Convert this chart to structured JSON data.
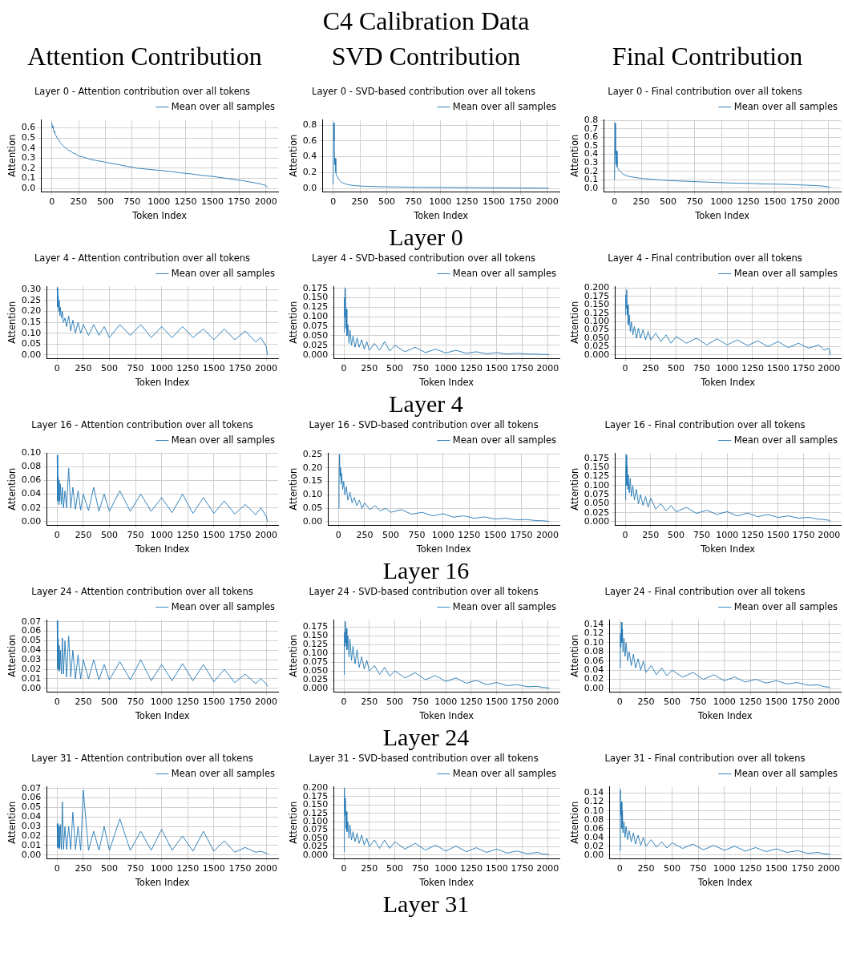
{
  "chart_data": [
    {
      "type": "other",
      "title": "C4 Calibration Data"
    },
    {
      "type": "line",
      "title": "Layer 0 - Attention contribution over all tokens",
      "subtitle": "Attention Contribution",
      "xlabel": "Token Index",
      "ylabel": "Attention",
      "legend": "top right",
      "grid": true,
      "xlim": [
        -100,
        2115
      ],
      "xticks": [
        0,
        250,
        500,
        750,
        1000,
        1250,
        1500,
        1750,
        2000
      ],
      "ylim": [
        -0.03,
        0.68
      ],
      "yticks": [
        {
          "value": 0,
          "label": "0.0"
        },
        0.1,
        0.2,
        0.3,
        0.4,
        0.5,
        0.6
      ],
      "x": [
        0,
        5,
        10,
        15,
        20,
        25,
        30,
        40,
        50,
        60,
        75,
        90,
        110,
        130,
        150,
        175,
        200,
        225,
        250,
        300,
        350,
        400,
        450,
        500,
        600,
        700,
        800,
        900,
        1000,
        1100,
        1200,
        1300,
        1400,
        1500,
        1600,
        1700,
        1800,
        1900,
        1950,
        2000,
        2015
      ],
      "series": [
        {
          "name": "Mean over all samples",
          "color": "#1f77b4",
          "values": [
            0.65,
            0.6,
            0.62,
            0.58,
            0.57,
            0.55,
            0.54,
            0.52,
            0.5,
            0.49,
            0.46,
            0.44,
            0.42,
            0.4,
            0.38,
            0.37,
            0.35,
            0.34,
            0.32,
            0.31,
            0.29,
            0.28,
            0.27,
            0.26,
            0.24,
            0.22,
            0.2,
            0.19,
            0.18,
            0.17,
            0.155,
            0.145,
            0.13,
            0.12,
            0.105,
            0.09,
            0.075,
            0.055,
            0.045,
            0.03,
            0.01
          ]
        }
      ]
    },
    {
      "type": "line",
      "title": "Layer 0 - SVD-based contribution over all tokens",
      "subtitle": "SVD Contribution",
      "annotations": [
        "Layer 0"
      ],
      "xlabel": "Token Index",
      "ylabel": "Attention",
      "legend": "top right",
      "grid": true,
      "xlim": [
        -100,
        2115
      ],
      "xticks": [
        0,
        250,
        500,
        750,
        1000,
        1250,
        1500,
        1750,
        2000
      ],
      "ylim": [
        -0.04,
        0.87
      ],
      "yticks": [
        {
          "value": 0,
          "label": "0.0"
        },
        0.2,
        0.4,
        0.6,
        0.8
      ],
      "x": [
        0,
        5,
        10,
        15,
        20,
        25,
        30,
        40,
        50,
        60,
        75,
        90,
        110,
        130,
        150,
        175,
        200,
        225,
        250,
        300,
        350,
        400,
        450,
        500,
        600,
        700,
        800,
        900,
        1000,
        1100,
        1200,
        1300,
        1400,
        1500,
        1600,
        1700,
        1800,
        1900,
        1950,
        2000,
        2015
      ],
      "series": [
        {
          "name": "Mean over all samples",
          "color": "#1f77b4",
          "values": [
            0.05,
            0.83,
            0.6,
            0.3,
            0.38,
            0.2,
            0.17,
            0.15,
            0.12,
            0.1,
            0.08,
            0.07,
            0.06,
            0.05,
            0.045,
            0.04,
            0.035,
            0.033,
            0.03,
            0.027,
            0.025,
            0.023,
            0.021,
            0.02,
            0.018,
            0.016,
            0.015,
            0.014,
            0.013,
            0.012,
            0.011,
            0.01,
            0.009,
            0.008,
            0.007,
            0.006,
            0.005,
            0.004,
            0.003,
            0.002,
            0.002
          ]
        }
      ]
    },
    {
      "type": "line",
      "title": "Layer 0 - Final contribution over all tokens",
      "subtitle": "Final Contribution",
      "xlabel": "Token Index",
      "ylabel": "Attention",
      "legend": "top right",
      "grid": true,
      "xlim": [
        -100,
        2115
      ],
      "xticks": [
        0,
        250,
        500,
        750,
        1000,
        1250,
        1500,
        1750,
        2000
      ],
      "ylim": [
        -0.04,
        0.81
      ],
      "yticks": [
        {
          "value": 0,
          "label": "0.0"
        },
        0.1,
        0.2,
        0.3,
        0.4,
        0.5,
        0.6,
        0.7,
        0.8
      ],
      "x": [
        0,
        5,
        10,
        15,
        20,
        25,
        30,
        40,
        50,
        60,
        75,
        90,
        110,
        130,
        150,
        175,
        200,
        225,
        250,
        300,
        350,
        400,
        450,
        500,
        600,
        700,
        800,
        900,
        1000,
        1100,
        1200,
        1300,
        1400,
        1500,
        1600,
        1700,
        1800,
        1900,
        1950,
        2000,
        2015
      ],
      "series": [
        {
          "name": "Mean over all samples",
          "color": "#1f77b4",
          "values": [
            0.1,
            0.77,
            0.4,
            0.28,
            0.44,
            0.25,
            0.24,
            0.22,
            0.2,
            0.19,
            0.17,
            0.16,
            0.15,
            0.14,
            0.135,
            0.13,
            0.125,
            0.12,
            0.115,
            0.11,
            0.105,
            0.1,
            0.095,
            0.09,
            0.085,
            0.08,
            0.075,
            0.07,
            0.065,
            0.06,
            0.058,
            0.055,
            0.05,
            0.048,
            0.045,
            0.04,
            0.035,
            0.03,
            0.025,
            0.015,
            0.005
          ]
        }
      ]
    },
    {
      "type": "line",
      "title": "Layer 4 - Attention contribution over all tokens",
      "xlabel": "Token Index",
      "ylabel": "Attention",
      "legend": "top right",
      "grid": true,
      "xlim": [
        -100,
        2115
      ],
      "xticks": [
        0,
        250,
        500,
        750,
        1000,
        1250,
        1500,
        1750,
        2000
      ],
      "ylim": [
        -0.015,
        0.315
      ],
      "yticks": [
        {
          "value": 0,
          "label": "0.00"
        },
        0.05,
        {
          "value": 0.1,
          "label": "0.10"
        },
        0.15,
        {
          "value": 0.2,
          "label": "0.20"
        },
        0.25,
        {
          "value": 0.3,
          "label": "0.30"
        }
      ],
      "x": [
        0,
        5,
        10,
        15,
        20,
        25,
        30,
        40,
        50,
        60,
        75,
        90,
        110,
        130,
        150,
        175,
        200,
        225,
        250,
        300,
        350,
        400,
        450,
        500,
        600,
        700,
        800,
        900,
        1000,
        1100,
        1200,
        1300,
        1400,
        1500,
        1600,
        1700,
        1800,
        1900,
        1950,
        2000,
        2015
      ],
      "series": [
        {
          "name": "Mean over all samples",
          "color": "#1f77b4",
          "values": [
            0.31,
            0.22,
            0.27,
            0.2,
            0.25,
            0.18,
            0.22,
            0.17,
            0.2,
            0.15,
            0.17,
            0.13,
            0.18,
            0.11,
            0.16,
            0.1,
            0.15,
            0.1,
            0.14,
            0.09,
            0.14,
            0.09,
            0.13,
            0.08,
            0.14,
            0.09,
            0.14,
            0.08,
            0.13,
            0.08,
            0.13,
            0.08,
            0.12,
            0.07,
            0.12,
            0.07,
            0.11,
            0.06,
            0.08,
            0.04,
            0.0
          ]
        }
      ]
    },
    {
      "type": "line",
      "title": "Layer 4 - SVD-based contribution over all tokens",
      "annotations": [
        "Layer 4"
      ],
      "xlabel": "Token Index",
      "ylabel": "Attention",
      "legend": "top right",
      "grid": true,
      "xlim": [
        -100,
        2115
      ],
      "xticks": [
        0,
        250,
        500,
        750,
        1000,
        1250,
        1500,
        1750,
        2000
      ],
      "ylim": [
        -0.009,
        0.18
      ],
      "yticks": [
        {
          "value": 0,
          "label": "0.000"
        },
        0.025,
        {
          "value": 0.05,
          "label": "0.050"
        },
        0.075,
        {
          "value": 0.1,
          "label": "0.100"
        },
        0.125,
        {
          "value": 0.15,
          "label": "0.150"
        },
        0.175
      ],
      "x": [
        0,
        5,
        10,
        15,
        20,
        25,
        30,
        40,
        50,
        60,
        75,
        90,
        110,
        130,
        150,
        175,
        200,
        225,
        250,
        300,
        350,
        400,
        450,
        500,
        600,
        700,
        800,
        900,
        1000,
        1100,
        1200,
        1300,
        1400,
        1500,
        1600,
        1700,
        1800,
        1900,
        1950,
        2000,
        2015
      ],
      "series": [
        {
          "name": "Mean over all samples",
          "color": "#1f77b4",
          "values": [
            0.06,
            0.15,
            0.1,
            0.175,
            0.07,
            0.12,
            0.05,
            0.08,
            0.03,
            0.065,
            0.025,
            0.05,
            0.02,
            0.045,
            0.02,
            0.04,
            0.015,
            0.035,
            0.012,
            0.03,
            0.012,
            0.035,
            0.01,
            0.025,
            0.008,
            0.02,
            0.006,
            0.015,
            0.005,
            0.012,
            0.004,
            0.008,
            0.003,
            0.006,
            0.002,
            0.004,
            0.002,
            0.002,
            0.001,
            0.001,
            0.0
          ]
        }
      ]
    },
    {
      "type": "line",
      "title": "Layer 4 - Final contribution over all tokens",
      "xlabel": "Token Index",
      "ylabel": "Attention",
      "legend": "top right",
      "grid": true,
      "xlim": [
        -100,
        2115
      ],
      "xticks": [
        0,
        250,
        500,
        750,
        1000,
        1250,
        1500,
        1750,
        2000
      ],
      "ylim": [
        -0.01,
        0.205
      ],
      "yticks": [
        {
          "value": 0,
          "label": "0.000"
        },
        0.025,
        {
          "value": 0.05,
          "label": "0.050"
        },
        0.075,
        {
          "value": 0.1,
          "label": "0.100"
        },
        0.125,
        {
          "value": 0.15,
          "label": "0.150"
        },
        0.175,
        {
          "value": 0.2,
          "label": "0.200"
        }
      ],
      "x": [
        0,
        5,
        10,
        15,
        20,
        25,
        30,
        40,
        50,
        60,
        75,
        90,
        110,
        130,
        150,
        175,
        200,
        225,
        250,
        300,
        350,
        400,
        450,
        500,
        600,
        700,
        800,
        900,
        1000,
        1100,
        1200,
        1300,
        1400,
        1500,
        1600,
        1700,
        1800,
        1900,
        1950,
        2000,
        2015
      ],
      "series": [
        {
          "name": "Mean over all samples",
          "color": "#1f77b4",
          "values": [
            0.12,
            0.18,
            0.14,
            0.195,
            0.12,
            0.15,
            0.09,
            0.12,
            0.07,
            0.1,
            0.06,
            0.085,
            0.05,
            0.08,
            0.05,
            0.075,
            0.045,
            0.07,
            0.045,
            0.065,
            0.04,
            0.06,
            0.035,
            0.055,
            0.035,
            0.05,
            0.03,
            0.048,
            0.03,
            0.045,
            0.028,
            0.042,
            0.025,
            0.04,
            0.022,
            0.035,
            0.02,
            0.03,
            0.015,
            0.02,
            0.0
          ]
        }
      ]
    },
    {
      "type": "line",
      "title": "Layer 16 - Attention contribution over all tokens",
      "xlabel": "Token Index",
      "ylabel": "Attention",
      "legend": "top right",
      "grid": true,
      "xlim": [
        -100,
        2115
      ],
      "xticks": [
        0,
        250,
        500,
        750,
        1000,
        1250,
        1500,
        1750,
        2000
      ],
      "ylim": [
        -0.005,
        0.1
      ],
      "yticks": [
        {
          "value": 0,
          "label": "0.00"
        },
        0.02,
        0.04,
        0.06,
        0.08,
        {
          "value": 0.1,
          "label": "0.10"
        }
      ],
      "x": [
        0,
        5,
        10,
        15,
        20,
        25,
        30,
        40,
        50,
        60,
        75,
        90,
        110,
        130,
        150,
        175,
        200,
        225,
        250,
        300,
        350,
        400,
        450,
        500,
        600,
        700,
        800,
        900,
        1000,
        1100,
        1200,
        1300,
        1400,
        1500,
        1600,
        1700,
        1800,
        1900,
        1950,
        2000,
        2015
      ],
      "series": [
        {
          "name": "Mean over all samples",
          "color": "#1f77b4",
          "values": [
            0.097,
            0.03,
            0.065,
            0.025,
            0.06,
            0.03,
            0.055,
            0.025,
            0.05,
            0.02,
            0.045,
            0.02,
            0.078,
            0.02,
            0.05,
            0.018,
            0.045,
            0.017,
            0.04,
            0.016,
            0.05,
            0.015,
            0.04,
            0.015,
            0.045,
            0.015,
            0.04,
            0.015,
            0.035,
            0.013,
            0.04,
            0.012,
            0.035,
            0.012,
            0.03,
            0.011,
            0.025,
            0.01,
            0.02,
            0.008,
            0.0
          ]
        }
      ]
    },
    {
      "type": "line",
      "title": "Layer 16 - SVD-based contribution over all tokens",
      "annotations": [
        "Layer 16"
      ],
      "xlabel": "Token Index",
      "ylabel": "Attention",
      "legend": "top right",
      "grid": true,
      "xlim": [
        -100,
        2115
      ],
      "xticks": [
        0,
        250,
        500,
        750,
        1000,
        1250,
        1500,
        1750,
        2000
      ],
      "ylim": [
        -0.012,
        0.255
      ],
      "yticks": [
        {
          "value": 0,
          "label": "0.00"
        },
        0.05,
        {
          "value": 0.1,
          "label": "0.10"
        },
        0.15,
        {
          "value": 0.2,
          "label": "0.20"
        },
        0.25
      ],
      "x": [
        0,
        5,
        10,
        15,
        20,
        25,
        30,
        40,
        50,
        60,
        75,
        90,
        110,
        130,
        150,
        175,
        200,
        225,
        250,
        300,
        350,
        400,
        450,
        500,
        600,
        700,
        800,
        900,
        1000,
        1100,
        1200,
        1300,
        1400,
        1500,
        1600,
        1700,
        1800,
        1900,
        1950,
        2000,
        2015
      ],
      "series": [
        {
          "name": "Mean over all samples",
          "color": "#1f77b4",
          "values": [
            0.05,
            0.15,
            0.25,
            0.17,
            0.2,
            0.14,
            0.18,
            0.12,
            0.15,
            0.1,
            0.13,
            0.08,
            0.11,
            0.07,
            0.09,
            0.06,
            0.08,
            0.05,
            0.07,
            0.045,
            0.06,
            0.04,
            0.05,
            0.035,
            0.045,
            0.028,
            0.035,
            0.022,
            0.03,
            0.017,
            0.022,
            0.013,
            0.018,
            0.01,
            0.013,
            0.007,
            0.008,
            0.004,
            0.004,
            0.002,
            0.001
          ]
        }
      ]
    },
    {
      "type": "line",
      "title": "Layer 16 - Final contribution over all tokens",
      "xlabel": "Token Index",
      "ylabel": "Attention",
      "legend": "top right",
      "grid": true,
      "xlim": [
        -100,
        2115
      ],
      "xticks": [
        0,
        250,
        500,
        750,
        1000,
        1250,
        1500,
        1750,
        2000
      ],
      "ylim": [
        -0.009,
        0.19
      ],
      "yticks": [
        {
          "value": 0,
          "label": "0.000"
        },
        0.025,
        {
          "value": 0.05,
          "label": "0.050"
        },
        0.075,
        {
          "value": 0.1,
          "label": "0.100"
        },
        0.125,
        {
          "value": 0.15,
          "label": "0.150"
        },
        0.175
      ],
      "x": [
        0,
        5,
        10,
        15,
        20,
        25,
        30,
        40,
        50,
        60,
        75,
        90,
        110,
        130,
        150,
        175,
        200,
        225,
        250,
        300,
        350,
        400,
        450,
        500,
        600,
        700,
        800,
        900,
        1000,
        1100,
        1200,
        1300,
        1400,
        1500,
        1600,
        1700,
        1800,
        1900,
        1950,
        2000,
        2015
      ],
      "series": [
        {
          "name": "Mean over all samples",
          "color": "#1f77b4",
          "values": [
            0.06,
            0.14,
            0.185,
            0.1,
            0.155,
            0.09,
            0.13,
            0.08,
            0.12,
            0.07,
            0.1,
            0.06,
            0.09,
            0.05,
            0.075,
            0.045,
            0.07,
            0.04,
            0.065,
            0.035,
            0.05,
            0.03,
            0.045,
            0.027,
            0.04,
            0.023,
            0.032,
            0.02,
            0.028,
            0.016,
            0.024,
            0.014,
            0.02,
            0.012,
            0.016,
            0.01,
            0.012,
            0.007,
            0.006,
            0.004,
            0.002
          ]
        }
      ]
    },
    {
      "type": "line",
      "title": "Layer 24 - Attention contribution over all tokens",
      "xlabel": "Token Index",
      "ylabel": "Attention",
      "legend": "top right",
      "grid": true,
      "xlim": [
        -100,
        2115
      ],
      "xticks": [
        0,
        250,
        500,
        750,
        1000,
        1250,
        1500,
        1750,
        2000
      ],
      "ylim": [
        -0.0035,
        0.072
      ],
      "yticks": [
        {
          "value": 0,
          "label": "0.00"
        },
        0.01,
        0.02,
        0.03,
        0.04,
        0.05,
        0.06,
        0.07
      ],
      "x": [
        0,
        5,
        10,
        15,
        20,
        25,
        30,
        40,
        50,
        60,
        75,
        90,
        110,
        130,
        150,
        175,
        200,
        225,
        250,
        300,
        350,
        400,
        450,
        500,
        600,
        700,
        800,
        900,
        1000,
        1100,
        1200,
        1300,
        1400,
        1500,
        1600,
        1700,
        1800,
        1900,
        1950,
        2000,
        2015
      ],
      "series": [
        {
          "name": "Mean over all samples",
          "color": "#1f77b4",
          "values": [
            0.071,
            0.02,
            0.052,
            0.018,
            0.045,
            0.02,
            0.04,
            0.015,
            0.053,
            0.015,
            0.05,
            0.012,
            0.055,
            0.012,
            0.04,
            0.01,
            0.035,
            0.01,
            0.03,
            0.01,
            0.03,
            0.009,
            0.025,
            0.009,
            0.028,
            0.009,
            0.03,
            0.008,
            0.025,
            0.008,
            0.026,
            0.008,
            0.025,
            0.007,
            0.02,
            0.006,
            0.015,
            0.005,
            0.01,
            0.005,
            0.002
          ]
        }
      ]
    },
    {
      "type": "line",
      "title": "Layer 24 - SVD-based contribution over all tokens",
      "annotations": [
        "Layer 24"
      ],
      "xlabel": "Token Index",
      "ylabel": "Attention",
      "legend": "top right",
      "grid": true,
      "xlim": [
        -100,
        2115
      ],
      "xticks": [
        0,
        250,
        500,
        750,
        1000,
        1250,
        1500,
        1750,
        2000
      ],
      "ylim": [
        -0.009,
        0.195
      ],
      "yticks": [
        {
          "value": 0,
          "label": "0.000"
        },
        0.025,
        {
          "value": 0.05,
          "label": "0.050"
        },
        0.075,
        {
          "value": 0.1,
          "label": "0.100"
        },
        0.125,
        {
          "value": 0.15,
          "label": "0.150"
        },
        0.175
      ],
      "x": [
        0,
        5,
        10,
        15,
        20,
        25,
        30,
        40,
        50,
        60,
        75,
        90,
        110,
        130,
        150,
        175,
        200,
        225,
        250,
        300,
        350,
        400,
        450,
        500,
        600,
        700,
        800,
        900,
        1000,
        1100,
        1200,
        1300,
        1400,
        1500,
        1600,
        1700,
        1800,
        1900,
        1950,
        2000,
        2015
      ],
      "series": [
        {
          "name": "Mean over all samples",
          "color": "#1f77b4",
          "values": [
            0.04,
            0.16,
            0.12,
            0.19,
            0.13,
            0.17,
            0.11,
            0.15,
            0.09,
            0.14,
            0.08,
            0.12,
            0.07,
            0.11,
            0.06,
            0.09,
            0.055,
            0.08,
            0.05,
            0.065,
            0.04,
            0.06,
            0.035,
            0.05,
            0.03,
            0.045,
            0.025,
            0.037,
            0.02,
            0.03,
            0.015,
            0.023,
            0.011,
            0.017,
            0.008,
            0.011,
            0.005,
            0.006,
            0.003,
            0.002,
            0.001
          ]
        }
      ]
    },
    {
      "type": "line",
      "title": "Layer 24 - Final contribution over all tokens",
      "xlabel": "Token Index",
      "ylabel": "Attention",
      "legend": "top right",
      "grid": true,
      "xlim": [
        -100,
        2115
      ],
      "xticks": [
        0,
        250,
        500,
        750,
        1000,
        1250,
        1500,
        1750,
        2000
      ],
      "ylim": [
        -0.007,
        0.15
      ],
      "yticks": [
        {
          "value": 0,
          "label": "0.00"
        },
        0.02,
        0.04,
        0.06,
        0.08,
        {
          "value": 0.1,
          "label": "0.10"
        },
        0.12,
        0.14
      ],
      "x": [
        0,
        5,
        10,
        15,
        20,
        25,
        30,
        40,
        50,
        60,
        75,
        90,
        110,
        130,
        150,
        175,
        200,
        225,
        250,
        300,
        350,
        400,
        450,
        500,
        600,
        700,
        800,
        900,
        1000,
        1100,
        1200,
        1300,
        1400,
        1500,
        1600,
        1700,
        1800,
        1900,
        1950,
        2000,
        2015
      ],
      "series": [
        {
          "name": "Mean over all samples",
          "color": "#1f77b4",
          "values": [
            0.045,
            0.12,
            0.09,
            0.145,
            0.1,
            0.13,
            0.08,
            0.11,
            0.07,
            0.1,
            0.06,
            0.08,
            0.05,
            0.075,
            0.045,
            0.065,
            0.04,
            0.06,
            0.035,
            0.05,
            0.03,
            0.045,
            0.028,
            0.04,
            0.025,
            0.035,
            0.02,
            0.03,
            0.017,
            0.025,
            0.014,
            0.02,
            0.012,
            0.017,
            0.01,
            0.013,
            0.007,
            0.008,
            0.004,
            0.003,
            0.001
          ]
        }
      ]
    },
    {
      "type": "line",
      "title": "Layer 31 - Attention contribution over all tokens",
      "xlabel": "Token Index",
      "ylabel": "Attention",
      "legend": "top right",
      "grid": true,
      "xlim": [
        -100,
        2115
      ],
      "xticks": [
        0,
        250,
        500,
        750,
        1000,
        1250,
        1500,
        1750,
        2000
      ],
      "ylim": [
        -0.0035,
        0.072
      ],
      "yticks": [
        {
          "value": 0,
          "label": "0.00"
        },
        0.01,
        0.02,
        0.03,
        0.04,
        0.05,
        0.06,
        0.07
      ],
      "x": [
        0,
        5,
        10,
        15,
        20,
        25,
        30,
        40,
        50,
        60,
        75,
        90,
        110,
        130,
        150,
        175,
        200,
        225,
        250,
        300,
        350,
        400,
        450,
        500,
        600,
        700,
        800,
        900,
        1000,
        1100,
        1200,
        1300,
        1400,
        1500,
        1600,
        1700,
        1800,
        1900,
        1950,
        2000,
        2015
      ],
      "series": [
        {
          "name": "Mean over all samples",
          "color": "#1f77b4",
          "values": [
            0.033,
            0.008,
            0.033,
            0.007,
            0.03,
            0.007,
            0.032,
            0.006,
            0.056,
            0.006,
            0.03,
            0.006,
            0.03,
            0.006,
            0.045,
            0.006,
            0.03,
            0.005,
            0.068,
            0.005,
            0.025,
            0.005,
            0.03,
            0.005,
            0.038,
            0.005,
            0.025,
            0.005,
            0.027,
            0.005,
            0.02,
            0.004,
            0.025,
            0.004,
            0.015,
            0.003,
            0.008,
            0.003,
            0.004,
            0.002,
            0.001
          ]
        }
      ]
    },
    {
      "type": "line",
      "title": "Layer 31 - SVD-based contribution over all tokens",
      "annotations": [
        "Layer 31"
      ],
      "xlabel": "Token Index",
      "ylabel": "Attention",
      "legend": "top right",
      "grid": true,
      "xlim": [
        -100,
        2115
      ],
      "xticks": [
        0,
        250,
        500,
        750,
        1000,
        1250,
        1500,
        1750,
        2000
      ],
      "ylim": [
        -0.01,
        0.205
      ],
      "yticks": [
        {
          "value": 0,
          "label": "0.000"
        },
        0.025,
        {
          "value": 0.05,
          "label": "0.050"
        },
        0.075,
        {
          "value": 0.1,
          "label": "0.100"
        },
        0.125,
        {
          "value": 0.15,
          "label": "0.150"
        },
        0.175,
        {
          "value": 0.2,
          "label": "0.200"
        }
      ],
      "x": [
        0,
        5,
        10,
        15,
        20,
        25,
        30,
        40,
        50,
        60,
        75,
        90,
        110,
        130,
        150,
        175,
        200,
        225,
        250,
        300,
        350,
        400,
        450,
        500,
        600,
        700,
        800,
        900,
        1000,
        1100,
        1200,
        1300,
        1400,
        1500,
        1600,
        1700,
        1800,
        1900,
        1950,
        2000,
        2015
      ],
      "series": [
        {
          "name": "Mean over all samples",
          "color": "#1f77b4",
          "values": [
            0.01,
            0.2,
            0.12,
            0.17,
            0.08,
            0.13,
            0.07,
            0.1,
            0.05,
            0.09,
            0.045,
            0.07,
            0.04,
            0.065,
            0.035,
            0.06,
            0.03,
            0.05,
            0.025,
            0.045,
            0.02,
            0.045,
            0.02,
            0.04,
            0.018,
            0.035,
            0.015,
            0.03,
            0.012,
            0.027,
            0.01,
            0.022,
            0.008,
            0.018,
            0.006,
            0.012,
            0.004,
            0.008,
            0.003,
            0.002,
            0.001
          ]
        }
      ]
    },
    {
      "type": "line",
      "title": "Layer 31 - Final contribution over all tokens",
      "xlabel": "Token Index",
      "ylabel": "Attention",
      "legend": "top right",
      "grid": true,
      "xlim": [
        -100,
        2115
      ],
      "xticks": [
        0,
        250,
        500,
        750,
        1000,
        1250,
        1500,
        1750,
        2000
      ],
      "ylim": [
        -0.0075,
        0.155
      ],
      "yticks": [
        {
          "value": 0,
          "label": "0.00"
        },
        0.02,
        0.04,
        0.06,
        0.08,
        {
          "value": 0.1,
          "label": "0.10"
        },
        0.12,
        0.14
      ],
      "x": [
        0,
        5,
        10,
        15,
        20,
        25,
        30,
        40,
        50,
        60,
        75,
        90,
        110,
        130,
        150,
        175,
        200,
        225,
        250,
        300,
        350,
        400,
        450,
        500,
        600,
        700,
        800,
        900,
        1000,
        1100,
        1200,
        1300,
        1400,
        1500,
        1600,
        1700,
        1800,
        1900,
        1950,
        2000,
        2015
      ],
      "series": [
        {
          "name": "Mean over all samples",
          "color": "#1f77b4",
          "values": [
            0.01,
            0.148,
            0.09,
            0.12,
            0.06,
            0.1,
            0.05,
            0.075,
            0.04,
            0.065,
            0.035,
            0.055,
            0.03,
            0.05,
            0.025,
            0.045,
            0.022,
            0.04,
            0.02,
            0.035,
            0.018,
            0.03,
            0.016,
            0.028,
            0.015,
            0.025,
            0.012,
            0.022,
            0.011,
            0.02,
            0.009,
            0.017,
            0.008,
            0.014,
            0.006,
            0.01,
            0.004,
            0.006,
            0.003,
            0.002,
            0.001
          ]
        }
      ]
    }
  ]
}
